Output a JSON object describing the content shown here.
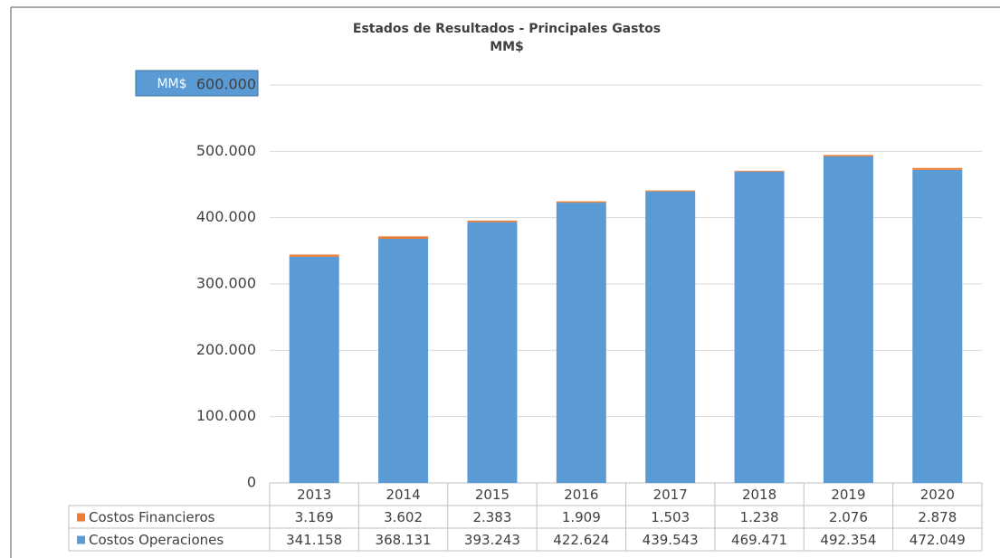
{
  "chart_data": {
    "type": "stacked_bar",
    "title": "Estados de Resultados - Principales Gastos",
    "subtitle": "MM$",
    "ylabel": "MM$",
    "categories": [
      "2013",
      "2014",
      "2015",
      "2016",
      "2017",
      "2018",
      "2019",
      "2020"
    ],
    "series": [
      {
        "name": "Costos Operaciones",
        "color": "#5b9bd5",
        "values": [
          341158,
          368131,
          393243,
          422624,
          439543,
          469471,
          492354,
          472049
        ],
        "value_labels": [
          "341.158",
          "368.131",
          "393.243",
          "422.624",
          "439.543",
          "469.471",
          "492.354",
          "472.049"
        ]
      },
      {
        "name": "Costos Financieros",
        "color": "#ed7d31",
        "values": [
          3169,
          3602,
          2383,
          1909,
          1503,
          1238,
          2076,
          2878
        ],
        "value_labels": [
          "3.169",
          "3.602",
          "2.383",
          "1.909",
          "1.503",
          "1.238",
          "2.076",
          "2.878"
        ]
      }
    ],
    "ylim": [
      0,
      600000
    ],
    "yticks": [
      0,
      {
        "value": 100000,
        "label": "100.000"
      },
      {
        "value": 200000,
        "label": "200.000"
      },
      {
        "value": 300000,
        "label": "300.000"
      },
      {
        "value": 400000,
        "label": "400.000"
      },
      {
        "value": 500000,
        "label": "500.000"
      },
      {
        "value": 600000,
        "label": "600.000"
      }
    ],
    "grid": true
  }
}
